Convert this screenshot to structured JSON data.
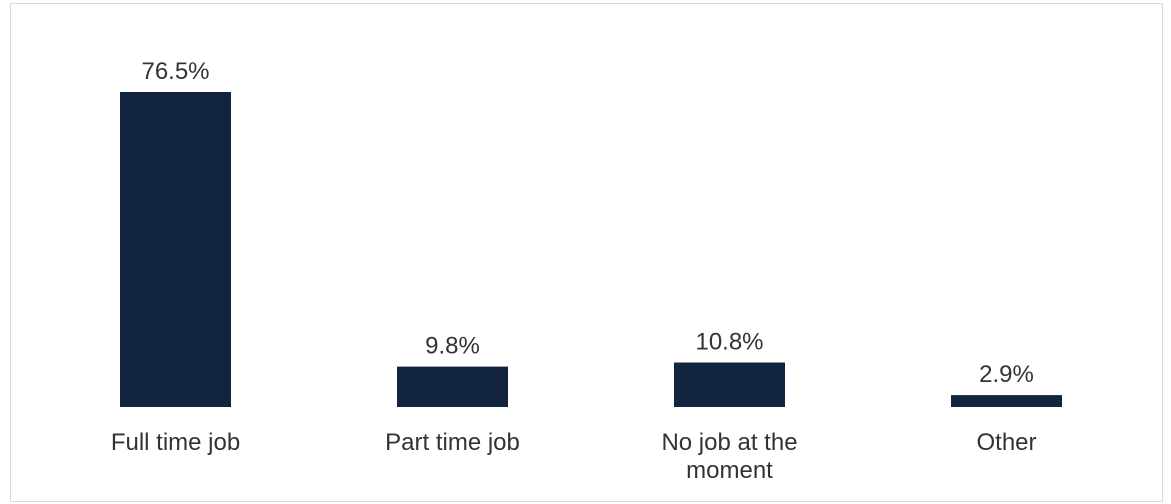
{
  "chart_data": {
    "type": "bar",
    "categories": [
      "Full time job",
      "Part time job",
      "No job at the moment",
      "Other"
    ],
    "category_lines": [
      [
        "Full time job"
      ],
      [
        "Part time job"
      ],
      [
        "No job at the",
        "moment"
      ],
      [
        "Other"
      ]
    ],
    "values": [
      76.5,
      9.8,
      10.8,
      2.9
    ],
    "data_labels": [
      "76.5%",
      "9.8%",
      "10.8%",
      "2.9%"
    ],
    "unit": "%",
    "title": "",
    "xlabel": "",
    "ylabel": "",
    "ylim": [
      0,
      76.5
    ],
    "grid": false,
    "legend": "none",
    "bar_color": "#12243f",
    "text_color": "#333333",
    "border_color": "#d9d9d9"
  }
}
